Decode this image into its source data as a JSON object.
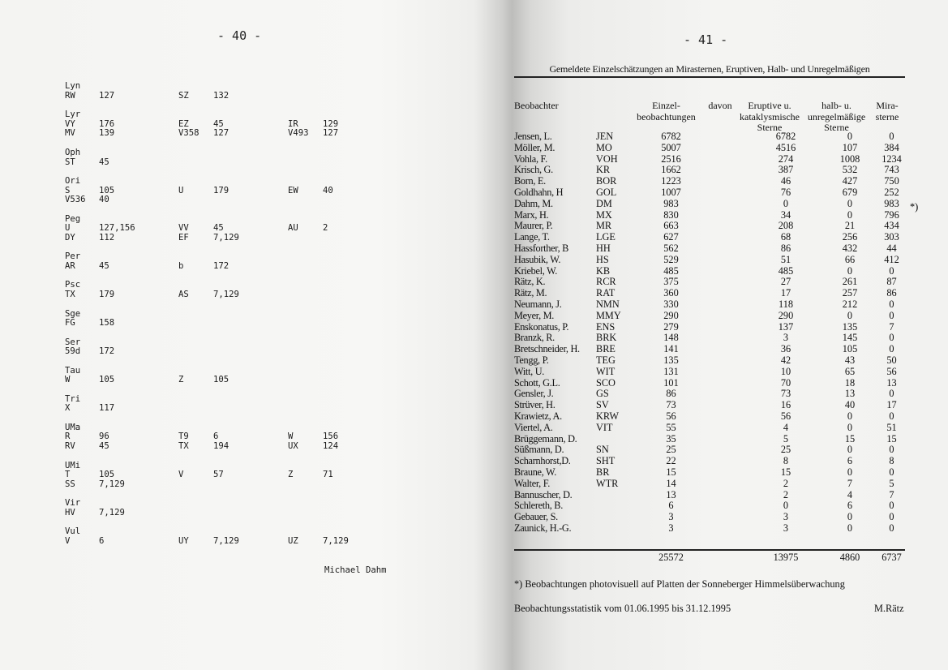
{
  "left_page": {
    "page_number": "- 40 -",
    "groups": [
      {
        "constellation": "Lyn",
        "rows": [
          [
            "RW",
            "127",
            "SZ",
            "132",
            "",
            ""
          ]
        ]
      },
      {
        "constellation": "Lyr",
        "rows": [
          [
            "VY",
            "176",
            "EZ",
            "45",
            "IR",
            "129"
          ],
          [
            "MV",
            "139",
            "V358",
            "127",
            "V493",
            "127"
          ]
        ]
      },
      {
        "constellation": "Oph",
        "rows": [
          [
            "ST",
            "45",
            "",
            "",
            "",
            ""
          ]
        ]
      },
      {
        "constellation": "Ori",
        "rows": [
          [
            "S",
            "105",
            "U",
            "179",
            "EW",
            "40"
          ],
          [
            "V536",
            "40",
            "",
            "",
            "",
            ""
          ]
        ]
      },
      {
        "constellation": "Peg",
        "rows": [
          [
            "U",
            "127,156",
            "VV",
            "45",
            "AU",
            "2"
          ],
          [
            "DY",
            "112",
            "EF",
            "7,129",
            "",
            ""
          ]
        ]
      },
      {
        "constellation": "Per",
        "rows": [
          [
            "AR",
            "45",
            "b",
            "172",
            "",
            ""
          ]
        ]
      },
      {
        "constellation": "Psc",
        "rows": [
          [
            "TX",
            "179",
            "AS",
            "7,129",
            "",
            ""
          ]
        ]
      },
      {
        "constellation": "Sge",
        "rows": [
          [
            "FG",
            "158",
            "",
            "",
            "",
            ""
          ]
        ]
      },
      {
        "constellation": "Ser",
        "rows": [
          [
            "59d",
            "172",
            "",
            "",
            "",
            ""
          ]
        ]
      },
      {
        "constellation": "Tau",
        "rows": [
          [
            "W",
            "105",
            "Z",
            "105",
            "",
            ""
          ]
        ]
      },
      {
        "constellation": "Tri",
        "rows": [
          [
            "X",
            "117",
            "",
            "",
            "",
            ""
          ]
        ]
      },
      {
        "constellation": "UMa",
        "rows": [
          [
            "R",
            "96",
            "T9",
            "6",
            "W",
            "156"
          ],
          [
            "RV",
            "45",
            "TX",
            "194",
            "UX",
            "124"
          ]
        ]
      },
      {
        "constellation": "UMi",
        "rows": [
          [
            "T",
            "105",
            "V",
            "57",
            "Z",
            "71"
          ],
          [
            "SS",
            "7,129",
            "",
            "",
            "",
            ""
          ]
        ]
      },
      {
        "constellation": "Vir",
        "rows": [
          [
            "HV",
            "7,129",
            "",
            "",
            "",
            ""
          ]
        ]
      },
      {
        "constellation": "Vul",
        "rows": [
          [
            "V",
            "6",
            "UY",
            "7,129",
            "UZ",
            "7,129"
          ]
        ]
      }
    ],
    "signature": "Michael Dahm"
  },
  "right_page": {
    "page_number": "- 41 -",
    "title": "Gemeldete Einzelschätzungen an Mirasternen, Eruptiven, Halb- und Unregelmäßigen",
    "headers": {
      "observer": "Beobachter",
      "single": "Einzel-\nbeobachtungen",
      "of_which": "davon",
      "eruptive": "Eruptive u.\nkataklysmische\nSterne",
      "semi": "halb- u.\nunregelmäßige\nSterne",
      "mira": "Mira-\nsterne"
    },
    "rows": [
      [
        "Jensen, L.",
        "JEN",
        "6782",
        "6782",
        "0",
        "0"
      ],
      [
        "Möller, M.",
        "MO",
        "5007",
        "4516",
        "107",
        "384"
      ],
      [
        "Vohla, F.",
        "VOH",
        "2516",
        "274",
        "1008",
        "1234"
      ],
      [
        "Krisch, G.",
        "KR",
        "1662",
        "387",
        "532",
        "743"
      ],
      [
        "Born, E.",
        "BOR",
        "1223",
        "46",
        "427",
        "750"
      ],
      [
        "Goldhahn, H",
        "GOL",
        "1007",
        "76",
        "679",
        "252"
      ],
      [
        "Dahm, M.",
        "DM",
        "983",
        "0",
        "0",
        "983"
      ],
      [
        "Marx, H.",
        "MX",
        "830",
        "34",
        "0",
        "796"
      ],
      [
        "Maurer, P.",
        "MR",
        "663",
        "208",
        "21",
        "434"
      ],
      [
        "Lange, T.",
        "LGE",
        "627",
        "68",
        "256",
        "303"
      ],
      [
        "Hassforther, B",
        "HH",
        "562",
        "86",
        "432",
        "44"
      ],
      [
        "Hasubik, W.",
        "HS",
        "529",
        "51",
        "66",
        "412"
      ],
      [
        "Kriebel, W.",
        "KB",
        "485",
        "485",
        "0",
        "0"
      ],
      [
        "Rätz, K.",
        "RCR",
        "375",
        "27",
        "261",
        "87"
      ],
      [
        "Rätz, M.",
        "RAT",
        "360",
        "17",
        "257",
        "86"
      ],
      [
        "Neumann, J.",
        "NMN",
        "330",
        "118",
        "212",
        "0"
      ],
      [
        "Meyer, M.",
        "MMY",
        "290",
        "290",
        "0",
        "0"
      ],
      [
        "Enskonatus, P.",
        "ENS",
        "279",
        "137",
        "135",
        "7"
      ],
      [
        "Branzk, R.",
        "BRK",
        "148",
        "3",
        "145",
        "0"
      ],
      [
        "Bretschneider, H.",
        "BRE",
        "141",
        "36",
        "105",
        "0"
      ],
      [
        "Tengg, P.",
        "TEG",
        "135",
        "42",
        "43",
        "50"
      ],
      [
        "Witt, U.",
        "WIT",
        "131",
        "10",
        "65",
        "56"
      ],
      [
        "Schott, G.L.",
        "SCO",
        "101",
        "70",
        "18",
        "13"
      ],
      [
        "Gensler, J.",
        "GS",
        "86",
        "73",
        "13",
        "0"
      ],
      [
        "Strüver, H.",
        "SV",
        "73",
        "16",
        "40",
        "17"
      ],
      [
        "Krawietz, A.",
        "KRW",
        "56",
        "56",
        "0",
        "0"
      ],
      [
        "Viertel, A.",
        "VIT",
        "55",
        "4",
        "0",
        "51"
      ],
      [
        "Brüggemann, D.",
        "",
        "35",
        "5",
        "15",
        "15"
      ],
      [
        "Süßmann, D.",
        "SN",
        "25",
        "25",
        "0",
        "0"
      ],
      [
        "Scharnhorst,D.",
        "SHT",
        "22",
        "8",
        "6",
        "8"
      ],
      [
        "Braune, W.",
        "BR",
        "15",
        "15",
        "0",
        "0"
      ],
      [
        "Walter, F.",
        "WTR",
        "14",
        "2",
        "7",
        "5"
      ],
      [
        "Bannuscher, D.",
        "",
        "13",
        "2",
        "4",
        "7"
      ],
      [
        "Schlereth, B.",
        "",
        "6",
        "0",
        "6",
        "0"
      ],
      [
        "Gebauer, S.",
        "",
        "3",
        "3",
        "0",
        "0"
      ],
      [
        "Zaunick, H.-G.",
        "",
        "3",
        "3",
        "0",
        "0"
      ]
    ],
    "row_marker": "*)",
    "totals": {
      "single": "25572",
      "eruptive": "13975",
      "semi": "4860",
      "mira": "6737"
    },
    "footnote": "*) Beobachtungen photovisuell auf Platten der Sonneberger Himmelsüberwachung",
    "statistics_period": "Beobachtungsstatistik vom 01.06.1995 bis 31.12.1995",
    "signature": "M.Rätz"
  }
}
